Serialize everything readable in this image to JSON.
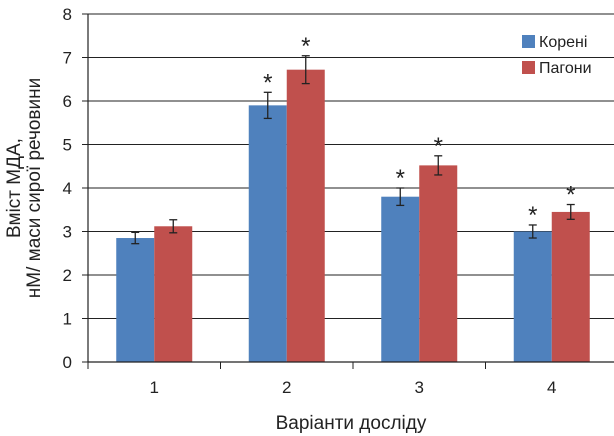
{
  "chart_data": {
    "type": "bar",
    "categories": [
      "1",
      "2",
      "3",
      "4"
    ],
    "series": [
      {
        "name": "Корені",
        "color": "#4f81bd",
        "values": [
          2.85,
          5.9,
          3.8,
          3.0
        ],
        "errors": [
          0.13,
          0.3,
          0.2,
          0.15
        ],
        "significant": [
          false,
          true,
          true,
          true
        ]
      },
      {
        "name": "Пагони",
        "color": "#c0504d",
        "values": [
          3.12,
          6.72,
          4.52,
          3.45
        ],
        "errors": [
          0.15,
          0.32,
          0.22,
          0.17
        ],
        "significant": [
          false,
          true,
          true,
          true
        ]
      }
    ],
    "xlabel": "Варіанти досліду",
    "ylabel_lines": [
      "Вміст МДА,",
      "нМ/ маси сирої речовини"
    ],
    "ylim": [
      0,
      8
    ],
    "yticks": [
      0,
      1,
      2,
      3,
      4,
      5,
      6,
      7,
      8
    ],
    "significance_marker": "*",
    "grid": true,
    "legend_position": "top-right"
  }
}
